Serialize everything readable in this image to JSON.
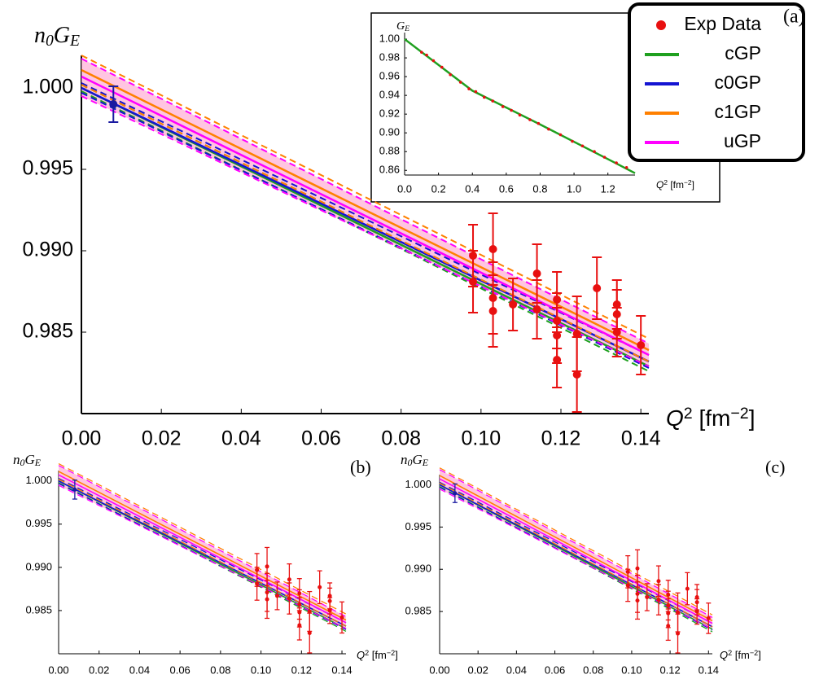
{
  "chart_data": [
    {
      "type": "line",
      "panel": "(a)",
      "y_label": [
        "n",
        "0",
        "G",
        "E"
      ],
      "x_label": [
        "Q",
        "2",
        " [fm",
        "−2",
        "]"
      ],
      "xlim": [
        0,
        0.142
      ],
      "ylim": [
        0.98,
        1.002
      ],
      "xticks": [
        {
          "value": 0,
          "label": "0.00"
        },
        0.02,
        0.04,
        0.06,
        0.08,
        {
          "value": 0.1,
          "label": "0.10"
        },
        0.12,
        0.14
      ],
      "yticks": [
        0.985,
        {
          "value": 0.99,
          "label": "0.990"
        },
        0.995,
        {
          "value": 1,
          "label": "1.000"
        }
      ],
      "series": [
        {
          "name": "Exp Data",
          "style": "points",
          "color": "#e81010",
          "x": [
            0.098,
            0.098,
            0.103,
            0.103,
            0.103,
            0.108,
            0.114,
            0.114,
            0.119,
            0.119,
            0.119,
            0.119,
            0.124,
            0.124,
            0.129,
            0.134,
            0.134,
            0.134,
            0.14
          ],
          "values": [
            0.9897,
            0.9881,
            0.9901,
            0.9871,
            0.9863,
            0.9867,
            0.9886,
            0.9864,
            0.987,
            0.9857,
            0.9848,
            0.9833,
            0.9849,
            0.9824,
            0.9877,
            0.9867,
            0.9861,
            0.985,
            0.9842
          ],
          "errors": [
            0.0019,
            0.0019,
            0.0022,
            0.0022,
            0.0022,
            0.0016,
            0.0018,
            0.0018,
            0.0017,
            0.0017,
            0.0017,
            0.0017,
            0.0023,
            0.0023,
            0.0019,
            0.0015,
            0.0015,
            0.0015,
            0.0018
          ]
        },
        {
          "name": "cGP",
          "style": "lines",
          "color": "#1fa01f",
          "x": [
            0,
            0.142
          ],
          "values": [
            1.0,
            0.9829
          ],
          "lower": [
            0.9998,
            0.9826
          ],
          "upper": [
            1.0002,
            0.9832
          ]
        },
        {
          "name": "c0GP",
          "style": "lines",
          "color": "#1414d2",
          "x": [
            0,
            0.142
          ],
          "values": [
            1.0,
            0.9832
          ],
          "lower": [
            0.9997,
            0.9828
          ],
          "upper": [
            1.0003,
            0.9836
          ]
        },
        {
          "name": "c1GP",
          "style": "lines",
          "color": "#ff8000",
          "x": [
            0,
            0.142
          ],
          "values": [
            1.0011,
            0.9839
          ],
          "lower": [
            1.0002,
            0.9832
          ],
          "upper": [
            1.002,
            0.9846
          ]
        },
        {
          "name": "uGP",
          "style": "lines",
          "color": "#ff00ff",
          "fill": "#ffb6da",
          "x": [
            0,
            0.142
          ],
          "values": [
            1.0007,
            0.9836
          ],
          "lower": [
            0.9995,
            0.9829
          ],
          "upper": [
            1.0018,
            0.9843
          ]
        },
        {
          "style": "points",
          "color": "#1a1aa0",
          "x": [
            0.008
          ],
          "values": [
            0.999
          ],
          "errors": [
            0.0011
          ]
        }
      ]
    },
    {
      "type": "line",
      "y_label": [
        "G",
        "E"
      ],
      "x_label": [
        "Q",
        "2",
        " [fm",
        "−2",
        "]"
      ],
      "xlim": [
        0,
        1.36
      ],
      "ylim": [
        0.855,
        1.007
      ],
      "xticks": [
        {
          "value": 0,
          "label": "0.0"
        },
        0.2,
        0.4,
        0.6,
        0.8,
        {
          "value": 1,
          "label": "1.0"
        },
        1.2
      ],
      "yticks": [
        0.86,
        0.88,
        {
          "value": 0.9,
          "label": "0.90"
        },
        0.92,
        0.94,
        0.96,
        0.98,
        {
          "value": 1,
          "label": "1.00"
        }
      ],
      "series": [
        {
          "style": "points",
          "color": "#e81010",
          "x": [
            0.1,
            0.13,
            0.17,
            0.22,
            0.27,
            0.33,
            0.38,
            0.42,
            0.47,
            0.52,
            0.58,
            0.63,
            0.68,
            0.74,
            0.79,
            0.85,
            0.92,
            0.99,
            1.05,
            1.12,
            1.18,
            1.25,
            1.31
          ],
          "values": [
            0.986,
            0.983,
            0.977,
            0.97,
            0.962,
            0.954,
            0.947,
            0.944,
            0.938,
            0.934,
            0.928,
            0.924,
            0.919,
            0.914,
            0.91,
            0.904,
            0.898,
            0.891,
            0.886,
            0.88,
            0.874,
            0.868,
            0.863
          ]
        },
        {
          "style": "lines",
          "color": "#1fa01f",
          "x": [
            0,
            0.4,
            0.8,
            1.2,
            1.36
          ],
          "values": [
            1.0,
            0.945,
            0.909,
            0.872,
            0.857
          ]
        }
      ]
    },
    {
      "type": "line",
      "panel": "(b)",
      "y_label": [
        "n",
        "0",
        "G",
        "E"
      ],
      "x_label": [
        "Q",
        "2",
        " [fm",
        "−2",
        "]"
      ],
      "xlim": [
        0,
        0.142
      ],
      "ylim": [
        0.98,
        1.0012
      ],
      "xticks": [
        {
          "value": 0,
          "label": "0.00"
        },
        0.02,
        0.04,
        0.06,
        0.08,
        {
          "value": 0.1,
          "label": "0.10"
        },
        0.12,
        0.14
      ],
      "yticks": [
        0.985,
        {
          "value": 0.99,
          "label": "0.990"
        },
        0.995,
        {
          "value": 1,
          "label": "1.000"
        }
      ],
      "series": [
        {
          "style": "points",
          "color": "#e81010",
          "x": [
            0.098,
            0.098,
            0.103,
            0.103,
            0.103,
            0.108,
            0.114,
            0.114,
            0.119,
            0.119,
            0.119,
            0.119,
            0.124,
            0.124,
            0.129,
            0.134,
            0.134,
            0.134,
            0.14
          ],
          "values": [
            0.9897,
            0.9881,
            0.9901,
            0.9871,
            0.9863,
            0.9867,
            0.9886,
            0.9864,
            0.987,
            0.9857,
            0.9848,
            0.9833,
            0.9849,
            0.9824,
            0.9877,
            0.9867,
            0.9861,
            0.985,
            0.9842
          ],
          "errors": [
            0.0019,
            0.0019,
            0.0022,
            0.0022,
            0.0022,
            0.0016,
            0.0018,
            0.0018,
            0.0017,
            0.0017,
            0.0017,
            0.0017,
            0.0023,
            0.0023,
            0.0019,
            0.0015,
            0.0015,
            0.0015,
            0.0018
          ]
        },
        {
          "style": "lines",
          "color": "#1fa01f",
          "x": [
            0,
            0.142
          ],
          "values": [
            1.0,
            0.9829
          ],
          "lower": [
            0.9998,
            0.9826
          ],
          "upper": [
            1.0002,
            0.9832
          ]
        },
        {
          "style": "lines",
          "color": "#1414d2",
          "x": [
            0,
            0.142
          ],
          "values": [
            1.0,
            0.9832
          ],
          "lower": [
            0.9997,
            0.9828
          ],
          "upper": [
            1.0003,
            0.9836
          ]
        },
        {
          "style": "lines",
          "color": "#ff8000",
          "x": [
            0,
            0.142
          ],
          "values": [
            1.0011,
            0.9839
          ],
          "lower": [
            1.0002,
            0.9832
          ],
          "upper": [
            1.002,
            0.9846
          ]
        },
        {
          "style": "lines",
          "color": "#ff00ff",
          "fill": "#ffb6da",
          "x": [
            0,
            0.142
          ],
          "values": [
            1.0007,
            0.9836
          ],
          "lower": [
            0.9995,
            0.9829
          ],
          "upper": [
            1.0018,
            0.9843
          ]
        },
        {
          "style": "points",
          "color": "#1a1aa0",
          "x": [
            0.008
          ],
          "values": [
            0.999
          ],
          "errors": [
            0.0011
          ]
        }
      ]
    },
    {
      "type": "line",
      "panel": "(c)",
      "y_label": [
        "n",
        "0",
        "G",
        "E"
      ],
      "x_label": [
        "Q",
        "2",
        " [fm",
        "−2",
        "]"
      ],
      "xlim": [
        0,
        0.142
      ],
      "ylim": [
        0.98,
        1.0012
      ],
      "xticks": [
        {
          "value": 0,
          "label": "0.00"
        },
        0.02,
        0.04,
        0.06,
        0.08,
        {
          "value": 0.1,
          "label": "0.10"
        },
        0.12,
        0.14
      ],
      "yticks": [
        0.985,
        {
          "value": 0.99,
          "label": "0.990"
        },
        0.995,
        {
          "value": 1,
          "label": "1.000"
        }
      ],
      "series": [
        {
          "style": "points",
          "color": "#e81010",
          "x": [
            0.098,
            0.098,
            0.103,
            0.103,
            0.103,
            0.108,
            0.114,
            0.114,
            0.119,
            0.119,
            0.119,
            0.119,
            0.124,
            0.124,
            0.129,
            0.134,
            0.134,
            0.134,
            0.14
          ],
          "values": [
            0.9897,
            0.9881,
            0.9901,
            0.9871,
            0.9863,
            0.9867,
            0.9886,
            0.9864,
            0.987,
            0.9857,
            0.9848,
            0.9833,
            0.9849,
            0.9824,
            0.9877,
            0.9867,
            0.9861,
            0.985,
            0.9842
          ],
          "errors": [
            0.0019,
            0.0019,
            0.0022,
            0.0022,
            0.0022,
            0.0016,
            0.0018,
            0.0018,
            0.0017,
            0.0017,
            0.0017,
            0.0017,
            0.0023,
            0.0023,
            0.0019,
            0.0015,
            0.0015,
            0.0015,
            0.0018
          ]
        },
        {
          "style": "lines",
          "color": "#1fa01f",
          "x": [
            0,
            0.142
          ],
          "values": [
            1.0,
            0.9829
          ],
          "lower": [
            0.9998,
            0.9826
          ],
          "upper": [
            1.0002,
            0.9832
          ]
        },
        {
          "style": "lines",
          "color": "#1414d2",
          "x": [
            0,
            0.142
          ],
          "values": [
            1.0,
            0.9832
          ],
          "lower": [
            0.9997,
            0.9828
          ],
          "upper": [
            1.0003,
            0.9836
          ]
        },
        {
          "style": "lines",
          "color": "#ff8000",
          "x": [
            0,
            0.142
          ],
          "values": [
            1.0011,
            0.9839
          ],
          "lower": [
            1.0002,
            0.9832
          ],
          "upper": [
            1.002,
            0.9846
          ]
        },
        {
          "style": "lines",
          "color": "#ff00ff",
          "fill": "#ffb6da",
          "x": [
            0,
            0.142
          ],
          "values": [
            1.0007,
            0.9836
          ],
          "lower": [
            0.9995,
            0.9829
          ],
          "upper": [
            1.0018,
            0.9843
          ]
        },
        {
          "style": "points",
          "color": "#1a1aa0",
          "x": [
            0.008
          ],
          "values": [
            0.999
          ],
          "errors": [
            0.0011
          ]
        }
      ]
    }
  ]
}
